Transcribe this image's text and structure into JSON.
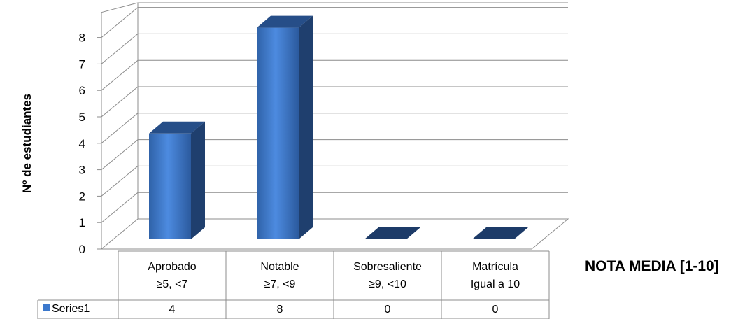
{
  "chart_data": {
    "type": "bar",
    "three_d": true,
    "categories": [
      [
        "Aprobado",
        "≥5, <7"
      ],
      [
        "Notable",
        "≥7, <9"
      ],
      [
        "Sobresaliente",
        "≥9, <10"
      ],
      [
        "Matrícula",
        "Igual a 10"
      ]
    ],
    "series": [
      {
        "name": "Series1",
        "values": [
          4,
          8,
          0,
          0
        ],
        "color": "#3b78cc"
      }
    ],
    "xlabel": "NOTA MEDIA [1-10]",
    "ylabel": "Nº de estudiantes",
    "ylim": [
      0,
      8
    ],
    "yticks": [
      "0",
      "1",
      "2",
      "3",
      "4",
      "5",
      "6",
      "7",
      "8"
    ],
    "grid": true,
    "data_table": true,
    "legend_placement": "data-table"
  }
}
